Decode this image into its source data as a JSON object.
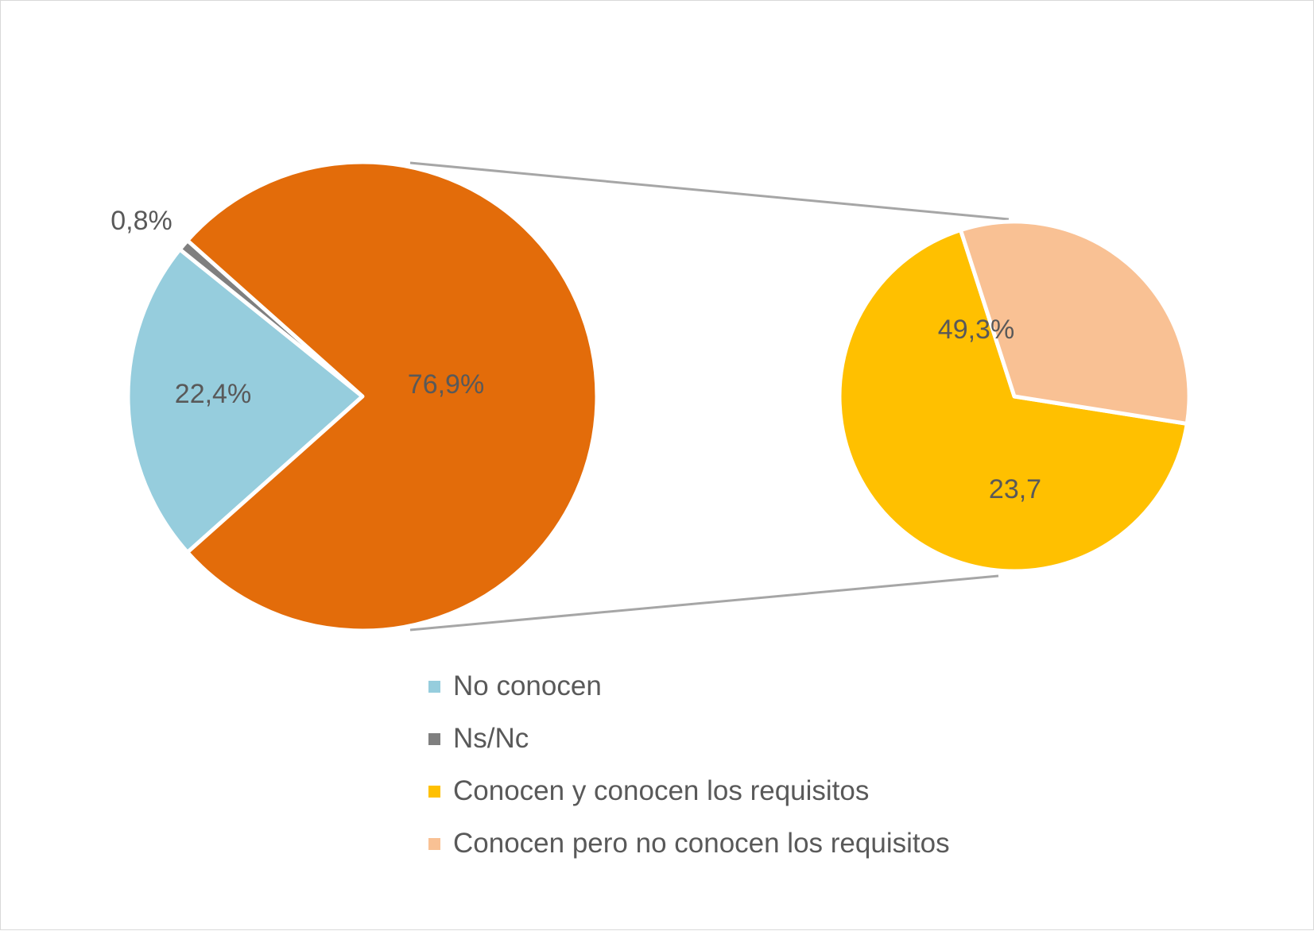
{
  "chart_data": {
    "type": "pie",
    "subtype": "pie-of-pie",
    "title": "",
    "main_pie": {
      "slices": [
        {
          "category": "No conocen",
          "value": 22.4,
          "label": "22,4%",
          "color": "#96CDDD"
        },
        {
          "category": "Ns/Nc",
          "value": 0.8,
          "label": "0,8%",
          "color": "#7F7F7F"
        },
        {
          "category": "Conocen",
          "value": 76.9,
          "label": "76,9%",
          "color": "#E36C0A"
        }
      ]
    },
    "secondary_pie": {
      "slices": [
        {
          "category": "Conocen y conocen los requisitos",
          "value": 49.3,
          "label": "49,3%",
          "color": "#FFC000"
        },
        {
          "category": "Conocen pero no conocen los requisitos",
          "value": 23.7,
          "label": "23,7",
          "color": "#F9C194"
        }
      ]
    },
    "legend": {
      "position": "bottom",
      "items": [
        {
          "label": "No conocen",
          "color": "#96CDDD"
        },
        {
          "label": "Ns/Nc",
          "color": "#7F7F7F"
        },
        {
          "label": "Conocen y conocen los requisitos",
          "color": "#FFC000"
        },
        {
          "label": "Conocen pero no conocen los requisitos",
          "color": "#F9C194"
        }
      ]
    },
    "connector_color": "#A6A6A6",
    "label_color": "#595959"
  }
}
